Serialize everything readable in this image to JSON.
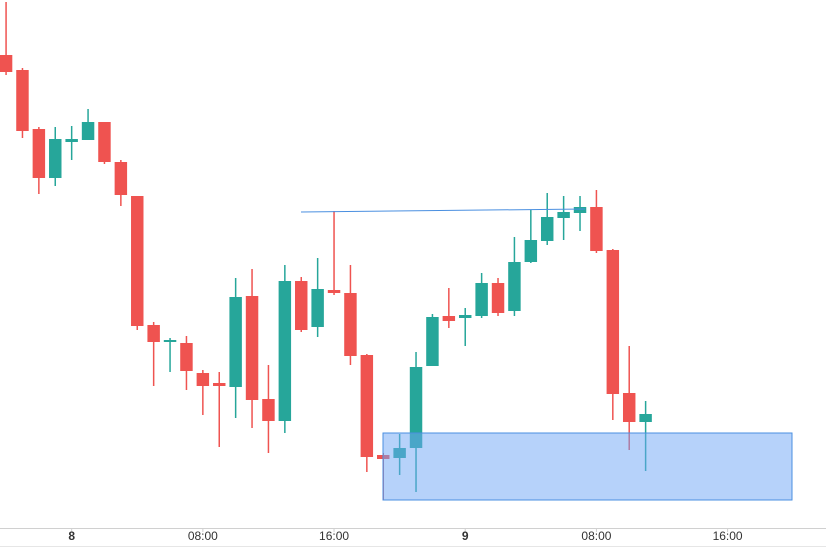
{
  "chart_data": {
    "type": "candlestick",
    "categories": [
      null,
      null,
      null,
      null,
      null,
      null,
      null,
      null,
      null,
      null,
      null,
      null,
      null,
      null,
      null,
      null,
      null,
      null,
      null,
      null,
      null,
      null,
      null,
      null,
      null,
      null,
      null,
      null,
      null,
      null,
      null,
      null,
      null,
      null,
      null,
      null,
      null,
      null,
      null,
      null
    ],
    "open": [
      475,
      460,
      401,
      352,
      388,
      390,
      408,
      368,
      334,
      205,
      188,
      187,
      157,
      147,
      143,
      234,
      131,
      109,
      249,
      203,
      240,
      237,
      175,
      75,
      72,
      82,
      164,
      214,
      212,
      214,
      247,
      219,
      268,
      289,
      312,
      317,
      323,
      280,
      137,
      108
    ],
    "high": [
      528,
      462,
      403,
      403,
      404,
      421,
      408,
      370,
      334,
      208,
      192,
      194,
      160,
      158,
      252,
      261,
      165,
      265,
      253,
      272,
      319,
      265,
      176,
      77,
      96,
      178,
      216,
      242,
      222,
      257,
      252,
      293,
      320,
      337,
      334,
      334,
      340,
      281,
      184,
      129
    ],
    "low": [
      455,
      392,
      336,
      344,
      370,
      390,
      366,
      324,
      200,
      144,
      158,
      140,
      115,
      83,
      112,
      102,
      77,
      97,
      198,
      193,
      235,
      165,
      58,
      30,
      55,
      38,
      164,
      202,
      184,
      212,
      214,
      214,
      267,
      285,
      290,
      299,
      277,
      110,
      80,
      59
    ],
    "close": [
      458,
      399,
      352,
      391,
      391,
      408,
      368,
      335,
      204,
      188,
      190,
      159,
      144,
      144,
      233,
      130,
      109,
      249,
      200,
      241,
      237,
      174,
      73,
      71,
      82,
      163,
      213,
      209,
      215,
      247,
      217,
      268,
      290,
      313,
      318,
      323,
      279,
      136,
      108,
      116
    ],
    "up_color": "#26a69a",
    "down_color": "#ef5350",
    "xlim": [
      -0.37,
      50.0
    ],
    "xticks": [
      {
        "value": 4,
        "label": "8"
      },
      {
        "value": 12,
        "label": "08:00"
      },
      {
        "value": 20,
        "label": "16:00"
      },
      {
        "value": 28,
        "label": "9"
      },
      {
        "value": 36,
        "label": "08:00"
      },
      {
        "value": 44,
        "label": "16:00"
      }
    ],
    "ylim": [
      0,
      530
    ]
  }
}
